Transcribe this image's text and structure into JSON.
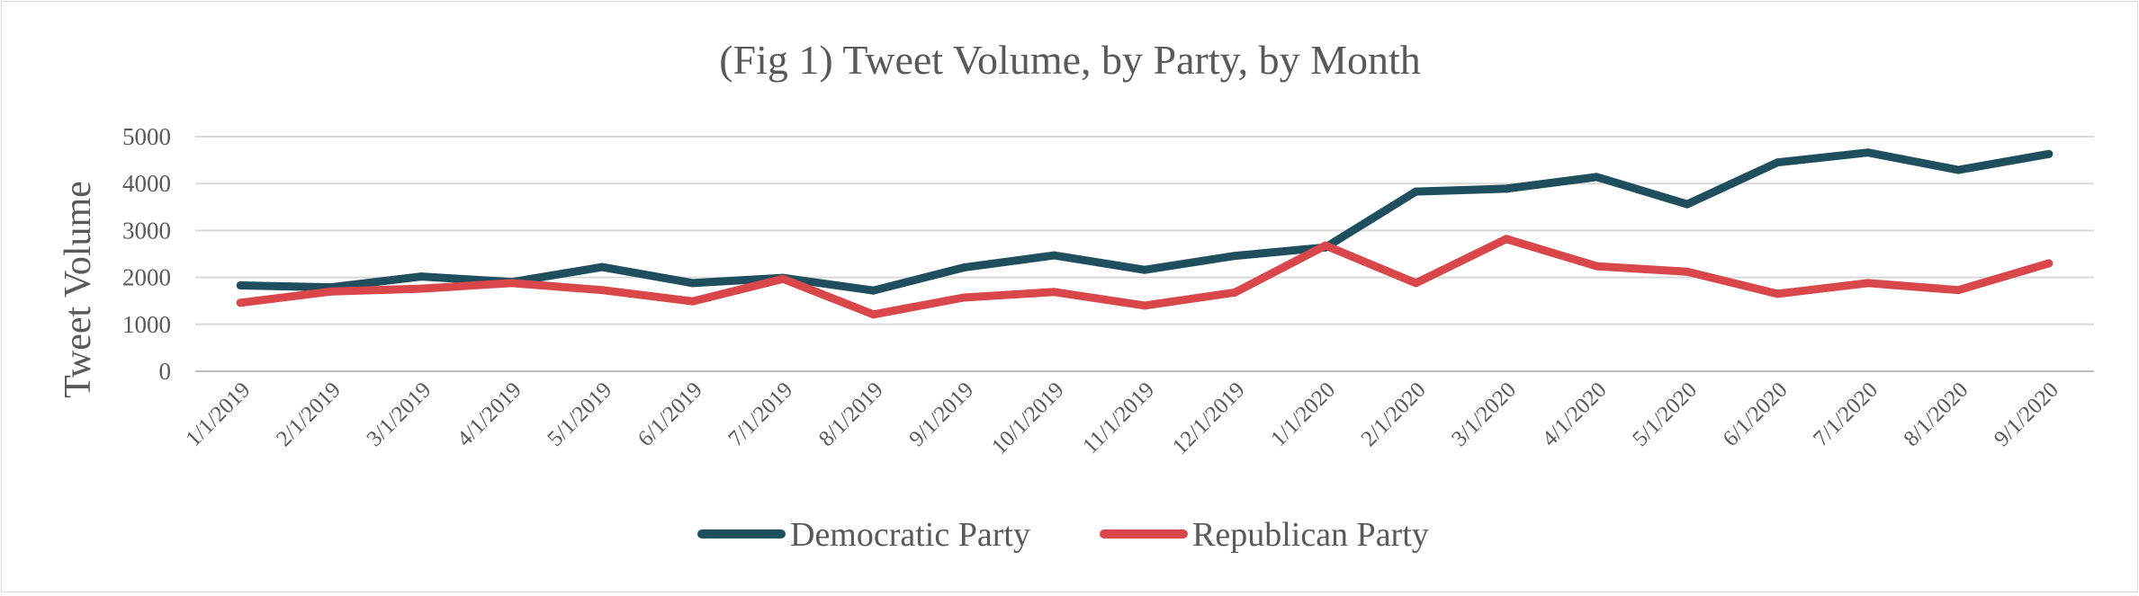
{
  "chart_data": {
    "type": "line",
    "title": "(Fig 1) Tweet Volume, by Party, by Month",
    "xlabel": "",
    "ylabel": "Tweet Volume",
    "ylim": [
      0,
      5000
    ],
    "yticks": [
      0,
      1000,
      2000,
      3000,
      4000,
      5000
    ],
    "grid": true,
    "legend_position": "bottom",
    "categories": [
      "1/1/2019",
      "2/1/2019",
      "3/1/2019",
      "4/1/2019",
      "5/1/2019",
      "6/1/2019",
      "7/1/2019",
      "8/1/2019",
      "9/1/2019",
      "10/1/2019",
      "11/1/2019",
      "12/1/2019",
      "1/1/2020",
      "2/1/2020",
      "3/1/2020",
      "4/1/2020",
      "5/1/2020",
      "6/1/2020",
      "7/1/2020",
      "8/1/2020",
      "9/1/2020"
    ],
    "series": [
      {
        "name": "Democratic Party",
        "color": "#1f4e5f",
        "values": [
          1830,
          1790,
          2020,
          1900,
          2220,
          1880,
          1990,
          1720,
          2210,
          2470,
          2160,
          2460,
          2640,
          3830,
          3890,
          4140,
          3560,
          4450,
          4660,
          4290,
          4630
        ]
      },
      {
        "name": "Republican Party",
        "color": "#d9474a",
        "values": [
          1460,
          1700,
          1760,
          1880,
          1730,
          1490,
          1970,
          1210,
          1570,
          1690,
          1400,
          1680,
          2680,
          1880,
          2820,
          2240,
          2120,
          1650,
          1880,
          1730,
          2300
        ]
      }
    ]
  }
}
